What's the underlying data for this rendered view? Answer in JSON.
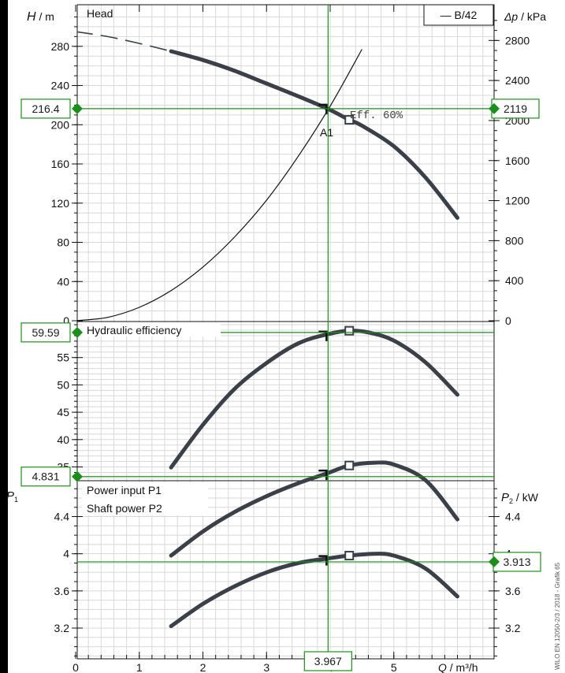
{
  "chart_data": {
    "type": "line",
    "x_label_var": "Q",
    "x_label_unit": "/ m³/h",
    "x_ticks": [
      "0",
      "1",
      "2",
      "3",
      "4",
      "5"
    ],
    "colors": {
      "curve": "#3a3f48",
      "grid": "#d8d8d8",
      "marker": "#1b8f1b",
      "axis": "#111111"
    },
    "operating_point_q": 3.967,
    "panels": [
      {
        "id": "head",
        "title": "Head",
        "y_left_var": "H",
        "y_left_unit": "/ m",
        "y_left_ticks": [
          "0",
          "40",
          "80",
          "120",
          "160",
          "200",
          "240",
          "280"
        ],
        "y_right_var": "Δp",
        "y_right_unit": "/ kPa",
        "y_right_ticks": [
          "0",
          "400",
          "800",
          "1200",
          "1600",
          "2000",
          "2400",
          "2800"
        ],
        "legend": "— B/42",
        "marker_left": "216.4",
        "marker_right": "2119",
        "point_label": "A1",
        "efficiency_label": "Eff. 60%",
        "series": [
          {
            "kind": "pump_curve",
            "x": [
              1.5,
              2.0,
              2.5,
              3.0,
              3.5,
              3.97,
              4.3,
              4.5,
              5.0,
              5.5,
              6.0
            ],
            "values": [
              275,
              266,
              255,
              242,
              229,
              216,
              205,
              199,
              178,
              146,
              105
            ]
          },
          {
            "kind": "pump_curve_extrapolated",
            "x": [
              0,
              0.5,
              1.0,
              1.5
            ],
            "values": [
              295,
              290,
              283,
              275
            ]
          },
          {
            "kind": "system_curve",
            "x": [
              0,
              0.5,
              1.0,
              1.5,
              2.0,
              2.5,
              3.0,
              3.5,
              4.0,
              4.5
            ],
            "values": [
              0,
              3.4,
              13.7,
              30.8,
              54.8,
              85.6,
              123,
              168,
              219,
              277
            ]
          }
        ],
        "duty_point_q": 4.3,
        "duty_point_h": 205
      },
      {
        "id": "efficiency",
        "title": "Hydraulic efficiency",
        "y_left_ticks": [
          "35",
          "40",
          "45",
          "50",
          "55"
        ],
        "marker_left": "59.59",
        "series": [
          {
            "kind": "efficiency",
            "x": [
              1.5,
              2.0,
              2.5,
              3.0,
              3.5,
              3.97,
              4.3,
              4.6,
              5.0,
              5.5,
              6.0
            ],
            "values": [
              34.9,
              42.7,
              49.3,
              54.0,
              57.6,
              59.3,
              59.9,
              59.6,
              58.1,
              54.1,
              48.2
            ]
          }
        ],
        "duty_point_q": 4.3,
        "duty_point_eta": 59.9
      },
      {
        "id": "power",
        "title_1": "Power input P1",
        "title_2": "Shaft power P2",
        "y_left_var": "P",
        "y_left_sub": "1",
        "y_right_var": "P",
        "y_right_sub": "2",
        "y_right_unit": "/ kW",
        "y_left_ticks": [
          "3.2",
          "3.6",
          "4",
          "4.4"
        ],
        "y_right_ticks": [
          "3.2",
          "3.6",
          "4",
          "4.4"
        ],
        "marker_left": "4.831",
        "marker_right": "3.913",
        "marker_bottom": "3.967",
        "series": [
          {
            "kind": "P1",
            "x": [
              1.5,
              2.0,
              2.5,
              3.0,
              3.5,
              3.97,
              4.3,
              4.7,
              5.0,
              5.5,
              6.0
            ],
            "values": [
              3.98,
              4.24,
              4.45,
              4.62,
              4.76,
              4.87,
              4.95,
              4.98,
              4.96,
              4.79,
              4.37
            ]
          },
          {
            "kind": "P2",
            "x": [
              1.5,
              2.0,
              2.5,
              3.0,
              3.5,
              3.97,
              4.3,
              4.7,
              5.0,
              5.5,
              6.0
            ],
            "values": [
              3.22,
              3.46,
              3.65,
              3.8,
              3.9,
              3.95,
              3.98,
              4.0,
              3.98,
              3.84,
              3.54
            ]
          }
        ],
        "duty_point_q": 4.3
      }
    ],
    "side_note": "WILO EN 12050-2/3 / 2018 - Grafik 65"
  }
}
